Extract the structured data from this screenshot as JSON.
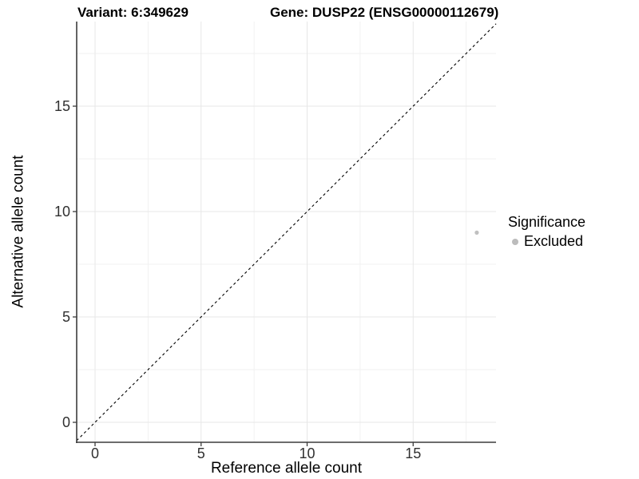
{
  "figure": {
    "titles": {
      "left": "Variant: 6:349629",
      "right": "Gene: DUSP22 (ENSG00000112679)"
    }
  },
  "chart_data": {
    "type": "scatter",
    "title": "Variant: 6:349629   Gene: DUSP22 (ENSG00000112679)",
    "xlabel": "Reference allele count",
    "ylabel": "Alternative allele count",
    "x_ticks": [
      0,
      5,
      10,
      15
    ],
    "y_ticks": [
      0,
      5,
      10,
      15
    ],
    "x_minor": [
      2.5,
      7.5,
      12.5,
      17.5
    ],
    "y_minor": [
      2.5,
      7.5,
      12.5,
      17.5
    ],
    "xlim": [
      -0.87,
      18.91
    ],
    "ylim": [
      -0.95,
      19.02
    ],
    "grid": true,
    "identity_line": {
      "slope": 1,
      "intercept": 0,
      "linetype": "dashed",
      "color": "#000000"
    },
    "points": [
      {
        "x": 18,
        "y": 9,
        "series": "Excluded"
      }
    ],
    "legend": {
      "position": "right",
      "title": "Significance",
      "entries": [
        {
          "label": "Excluded",
          "color": "#bcbcbc"
        }
      ]
    },
    "colors": {
      "point": "#c0c0c0",
      "axis_line": "#3c3c3c",
      "tick_label": "#303030",
      "grid_major": "#e7e7e7",
      "grid_minor": "#f1f1f1",
      "background": "#ffffff"
    }
  }
}
